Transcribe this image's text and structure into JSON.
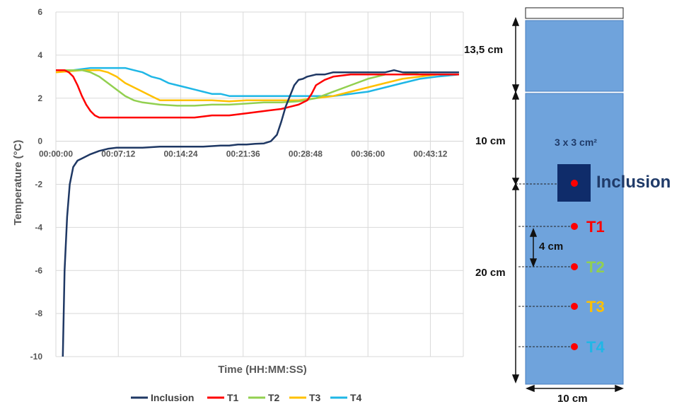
{
  "chart_data": {
    "type": "line",
    "ylabel": "Temperature (°C)",
    "xlabel": "Time (HH:MM:SS)",
    "xlim": [
      0,
      47
    ],
    "ylim": [
      -10,
      6
    ],
    "y_ticks": [
      "6",
      "4",
      "2",
      "0",
      "-2",
      "-4",
      "-6",
      "-8",
      "-10"
    ],
    "x_ticks": [
      "00:00:00",
      "00:07:12",
      "00:14:24",
      "00:21:36",
      "00:28:48",
      "00:36:00",
      "00:43:12"
    ],
    "x_tick_minutes": [
      0,
      7.2,
      14.4,
      21.6,
      28.8,
      36,
      43.2
    ],
    "grid": true,
    "legend_position": "bottom",
    "series": [
      {
        "name": "Inclusion",
        "color": "#1f3864",
        "x": [
          0.8,
          1.0,
          1.3,
          1.6,
          2.0,
          2.5,
          3,
          4,
          5,
          6,
          7,
          8,
          10,
          12,
          14,
          17,
          19,
          20,
          21,
          22,
          23,
          24,
          24.8,
          25.5,
          26,
          26.5,
          27,
          27.5,
          28,
          28.5,
          29,
          30,
          31,
          32,
          34,
          36,
          38,
          39,
          40,
          42,
          44,
          46.5
        ],
        "y": [
          -10,
          -6,
          -3.5,
          -2,
          -1.2,
          -0.9,
          -0.8,
          -0.6,
          -0.45,
          -0.35,
          -0.3,
          -0.3,
          -0.3,
          -0.25,
          -0.25,
          -0.25,
          -0.2,
          -0.2,
          -0.15,
          -0.15,
          -0.12,
          -0.1,
          0,
          0.3,
          0.9,
          1.6,
          2.1,
          2.6,
          2.85,
          2.9,
          3.0,
          3.1,
          3.1,
          3.2,
          3.2,
          3.2,
          3.2,
          3.3,
          3.2,
          3.2,
          3.2,
          3.2
        ]
      },
      {
        "name": "T1",
        "color": "#ff0000",
        "x": [
          0,
          1,
          1.5,
          2,
          2.5,
          3,
          3.5,
          4,
          4.5,
          5,
          6,
          7,
          9,
          12,
          14,
          16,
          18,
          20,
          22,
          24,
          26,
          27,
          28,
          29,
          29.5,
          30,
          31,
          32,
          34,
          36,
          38,
          40,
          42,
          44,
          46.5
        ],
        "y": [
          3.3,
          3.3,
          3.2,
          3.0,
          2.6,
          2.1,
          1.7,
          1.4,
          1.2,
          1.1,
          1.1,
          1.1,
          1.1,
          1.1,
          1.1,
          1.1,
          1.2,
          1.2,
          1.3,
          1.4,
          1.5,
          1.6,
          1.7,
          1.9,
          2.2,
          2.6,
          2.85,
          3.0,
          3.1,
          3.1,
          3.1,
          3.1,
          3.1,
          3.1,
          3.1
        ]
      },
      {
        "name": "T2",
        "color": "#92d050",
        "x": [
          0,
          2,
          3,
          4,
          5,
          6,
          7,
          8,
          9,
          10,
          12,
          14,
          16,
          18,
          20,
          22,
          24,
          26,
          28,
          30,
          32,
          34,
          36,
          38,
          40,
          42,
          44,
          46.5
        ],
        "y": [
          3.3,
          3.3,
          3.3,
          3.2,
          3.0,
          2.7,
          2.4,
          2.1,
          1.9,
          1.8,
          1.7,
          1.65,
          1.65,
          1.7,
          1.7,
          1.75,
          1.8,
          1.8,
          1.85,
          2.0,
          2.3,
          2.6,
          2.9,
          3.1,
          3.1,
          3.2,
          3.2,
          3.2
        ]
      },
      {
        "name": "T3",
        "color": "#ffc000",
        "x": [
          0,
          3,
          4,
          5,
          6,
          7,
          8,
          9,
          10,
          11,
          12,
          14,
          16,
          18,
          20,
          22,
          24,
          26,
          28,
          30,
          32,
          34,
          36,
          38,
          40,
          42,
          44,
          46.5
        ],
        "y": [
          3.2,
          3.3,
          3.3,
          3.3,
          3.2,
          3.0,
          2.7,
          2.5,
          2.3,
          2.1,
          1.9,
          1.9,
          1.9,
          1.9,
          1.85,
          1.9,
          1.9,
          1.9,
          1.9,
          2.0,
          2.1,
          2.3,
          2.5,
          2.7,
          2.9,
          3.0,
          3.1,
          3.1
        ]
      },
      {
        "name": "T4",
        "color": "#1fb7e6",
        "x": [
          0,
          2,
          4,
          5,
          6,
          7,
          8,
          9,
          10,
          11,
          12,
          13,
          14,
          15,
          16,
          17,
          18,
          19,
          20,
          22,
          24,
          26,
          28,
          30,
          32,
          34,
          36,
          38,
          40,
          42,
          44,
          46.5
        ],
        "y": [
          3.3,
          3.3,
          3.4,
          3.4,
          3.4,
          3.4,
          3.4,
          3.3,
          3.2,
          3.0,
          2.9,
          2.7,
          2.6,
          2.5,
          2.4,
          2.3,
          2.2,
          2.2,
          2.1,
          2.1,
          2.1,
          2.1,
          2.1,
          2.1,
          2.1,
          2.2,
          2.3,
          2.5,
          2.7,
          2.9,
          3.0,
          3.1
        ]
      }
    ]
  },
  "diagram": {
    "top_height_label": "13,5 cm",
    "upper_spacing_label": "10 cm",
    "inclusion_size_label": "3 x 3 cm²",
    "inclusion_label": "Inclusion",
    "sensor_spacing_label": "4 cm",
    "lower_section_label": "20 cm",
    "width_label": "10 cm",
    "sensors": [
      {
        "label": "T1",
        "color": "#ff0000"
      },
      {
        "label": "T2",
        "color": "#92d050"
      },
      {
        "label": "T3",
        "color": "#ffc000"
      },
      {
        "label": "T4",
        "color": "#1fb7e6"
      }
    ],
    "colors": {
      "block_fill": "#6fa3dc",
      "block_edge": "#4a7fbf",
      "inclusion_fill": "#0f2c6a",
      "inclusion_text": "#1f3a68",
      "sensor_dot": "#ff0000"
    }
  }
}
